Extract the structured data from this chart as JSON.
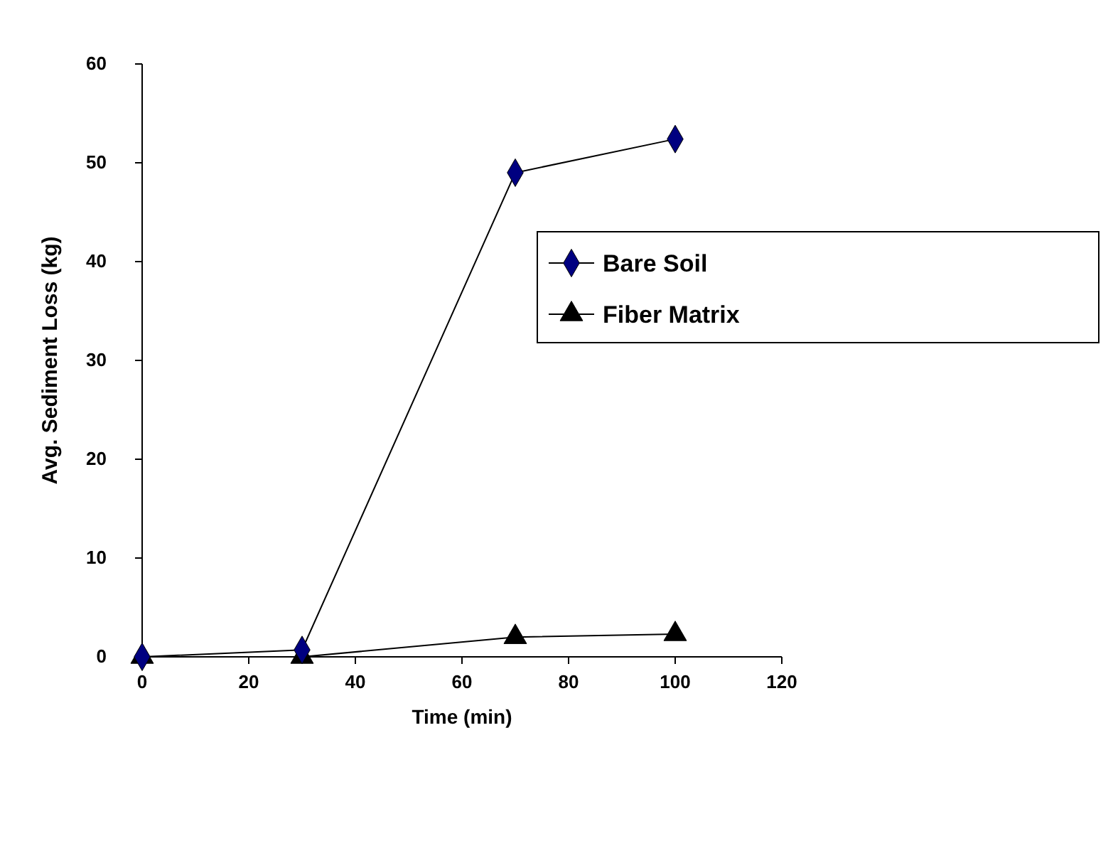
{
  "chart_data": {
    "type": "line",
    "xlabel": "Time (min)",
    "ylabel": "Avg. Sediment Loss (kg)",
    "xlim": [
      0,
      120
    ],
    "xticks": [
      0,
      20,
      40,
      60,
      80,
      100,
      120
    ],
    "ylim": [
      0,
      60
    ],
    "yticks": [
      0,
      10,
      20,
      30,
      40,
      50,
      60
    ],
    "grid": false,
    "legend": "right",
    "series": [
      {
        "name": "Bare Soil",
        "color": "#000080",
        "marker": "diamond",
        "x": [
          0,
          30,
          70,
          100
        ],
        "values": [
          0,
          0.7,
          49,
          52.4
        ]
      },
      {
        "name": "Fiber Matrix",
        "color": "#000000",
        "marker": "triangle",
        "x": [
          0,
          30,
          70,
          100
        ],
        "values": [
          0,
          0,
          2,
          2.3
        ]
      }
    ]
  }
}
